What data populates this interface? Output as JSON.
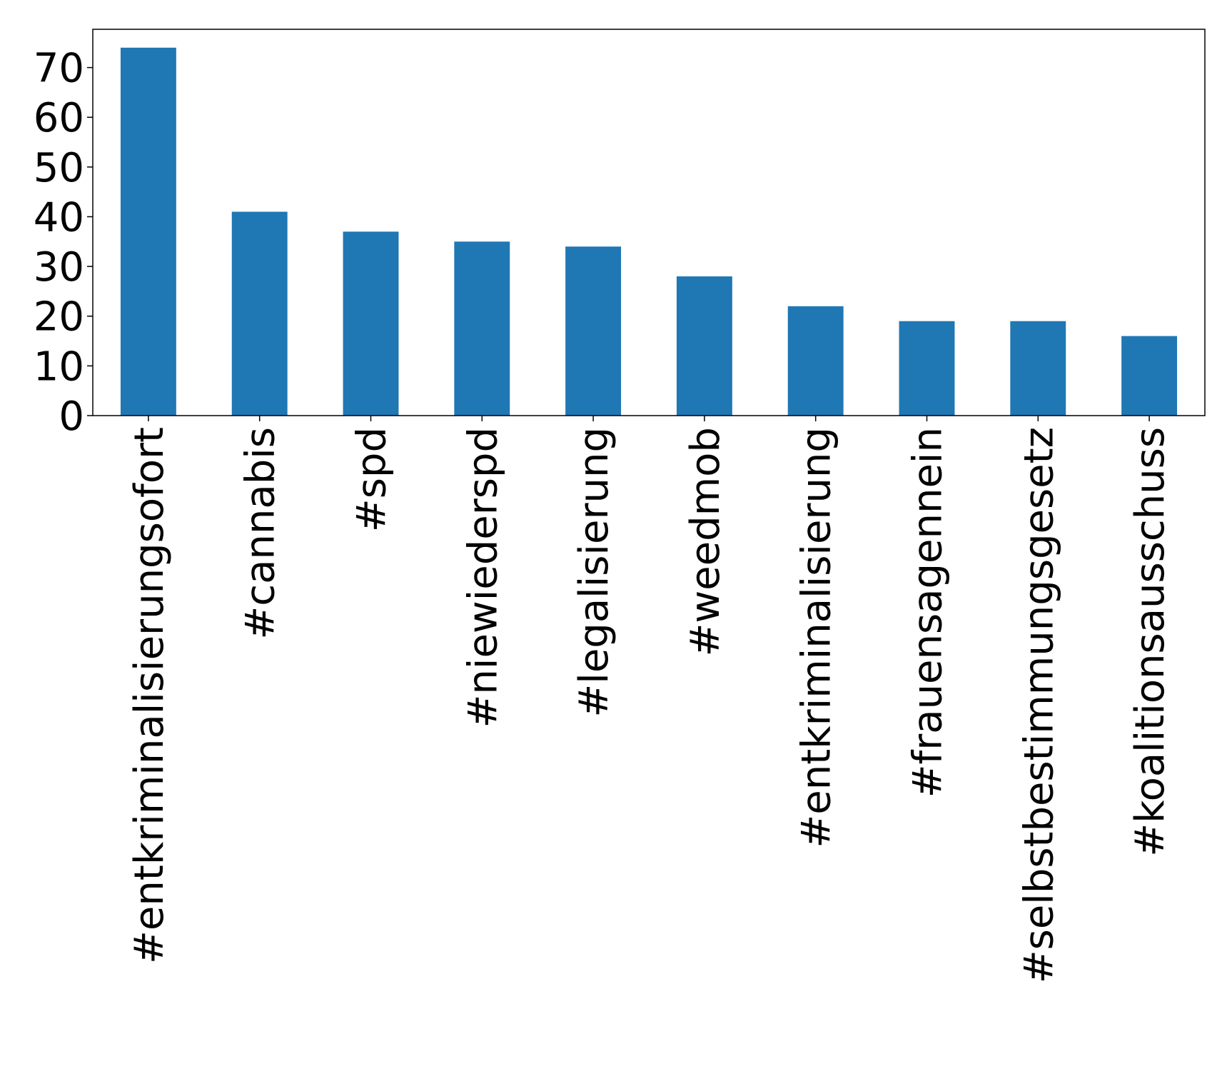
{
  "chart_data": {
    "type": "bar",
    "title": "",
    "xlabel": "",
    "ylabel": "",
    "categories": [
      "#entkriminalisierungsofort",
      "#cannabis",
      "#spd",
      "#niewiederspd",
      "#legalisierung",
      "#weedmob",
      "#entkriminalisierung",
      "#frauensagennein",
      "#selbstbestimmungsgesetz",
      "#koalitionsausschuss"
    ],
    "values": [
      74,
      41,
      37,
      35,
      34,
      28,
      22,
      19,
      19,
      16
    ],
    "ylim": [
      0,
      77.7
    ],
    "yticks": [
      0,
      10,
      20,
      30,
      40,
      50,
      60,
      70
    ],
    "grid": false,
    "legend": "none",
    "bar_color": "#1f77b4"
  }
}
